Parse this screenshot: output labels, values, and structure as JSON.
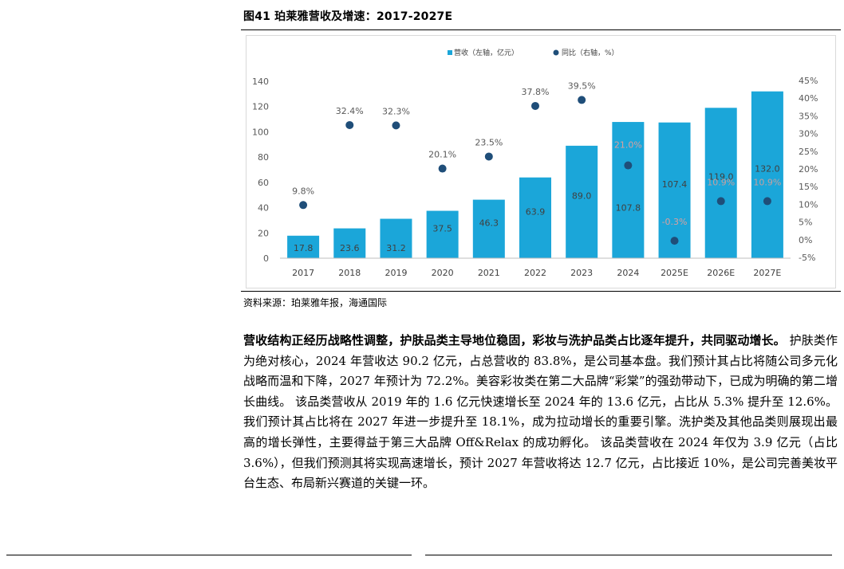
{
  "figure": {
    "title": "图41 珀莱雅营收及增速：2017-2027E",
    "source": "资料来源：珀莱雅年报，海通国际"
  },
  "chart_data": {
    "type": "bar",
    "categories": [
      "2017",
      "2018",
      "2019",
      "2020",
      "2021",
      "2022",
      "2023",
      "2024",
      "2025E",
      "2026E",
      "2027E"
    ],
    "series": [
      {
        "name": "营收（左轴，亿元）",
        "kind": "bar",
        "axis": "left",
        "color": "#1ba6d9",
        "values": [
          17.8,
          23.6,
          31.2,
          37.5,
          46.3,
          63.9,
          89.0,
          107.8,
          107.4,
          119.0,
          132.0
        ],
        "labels": [
          "17.8",
          "23.6",
          "31.2",
          "37.5",
          "46.3",
          "63.9",
          "89.0",
          "107.8",
          "107.4",
          "119.0",
          "132.0"
        ]
      },
      {
        "name": "同比（右轴，%）",
        "kind": "scatter",
        "axis": "right",
        "color": "#1f4e79",
        "values": [
          9.8,
          32.4,
          32.3,
          20.1,
          23.5,
          37.8,
          39.5,
          21.0,
          -0.3,
          10.9,
          10.9
        ],
        "labels": [
          "9.8%",
          "32.4%",
          "32.3%",
          "20.1%",
          "23.5%",
          "37.8%",
          "39.5%",
          "21.0%",
          "-0.3%",
          "10.9%",
          "10.9%"
        ]
      }
    ],
    "y_left": {
      "min": 0,
      "max": 140,
      "ticks": [
        "0",
        "20",
        "40",
        "60",
        "80",
        "100",
        "120",
        "140"
      ]
    },
    "y_right": {
      "min": -5,
      "max": 45,
      "ticks": [
        "-5%",
        "0%",
        "5%",
        "10%",
        "15%",
        "20%",
        "25%",
        "30%",
        "35%",
        "40%",
        "45%"
      ]
    },
    "legend_position": "top-center",
    "grid": false
  },
  "paragraph": {
    "lead": "营收结构正经历战略性调整，护肤品类主导地位稳固，彩妆与洗护品类占比逐年提升，共同驱动增长。",
    "body": "护肤类作为绝对核心，2024 年营收达 90.2 亿元，占总营收的 83.8%，是公司基本盘。我们预计其占比将随公司多元化战略而温和下降，2027 年预计为 72.2%。美容彩妆类在第二大品牌“彩棠”的强劲带动下，已成为明确的第二增长曲线。 该品类营收从 2019 年的 1.6 亿元快速增长至 2024 年的 13.6 亿元，占比从 5.3% 提升至 12.6%。我们预计其占比将在 2027 年进一步提升至 18.1%，成为拉动增长的重要引擎。洗护类及其他品类则展现出最高的增长弹性，主要得益于第三大品牌 Off&Relax 的成功孵化。 该品类营收在 2024 年仅为 3.9 亿元（占比 3.6%），但我们预测其将实现高速增长，预计 2027 年营收将达 12.7 亿元，占比接近 10%，是公司完善美妆平台生态、布局新兴赛道的关键一环。"
  }
}
